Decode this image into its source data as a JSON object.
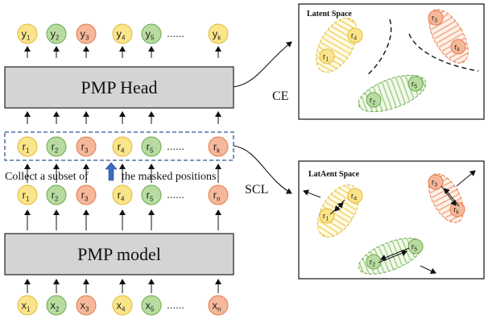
{
  "labels": {
    "pmp_head": "PMP Head",
    "pmp_model": "PMP model",
    "ce": "CE",
    "scl": "SCL",
    "caption_left": "Collect a subset of",
    "caption_right": "the masked positions",
    "panel_top_title": "Latent Space",
    "panel_bottom_title": "LatAent Space",
    "ellipsis": "......"
  },
  "rows": {
    "y": [
      {
        "base": "y",
        "sub": "1",
        "color": "yellow"
      },
      {
        "base": "y",
        "sub": "2",
        "color": "green"
      },
      {
        "base": "y",
        "sub": "3",
        "color": "orange"
      },
      {
        "base": "y",
        "sub": "4",
        "color": "yellow"
      },
      {
        "base": "y",
        "sub": "5",
        "color": "green"
      },
      {
        "base": "y",
        "sub": "k",
        "color": "yellow"
      }
    ],
    "rk": [
      {
        "base": "r",
        "sub": "1",
        "color": "yellow"
      },
      {
        "base": "r",
        "sub": "2",
        "color": "green"
      },
      {
        "base": "r",
        "sub": "3",
        "color": "orange"
      },
      {
        "base": "r",
        "sub": "4",
        "color": "yellow"
      },
      {
        "base": "r",
        "sub": "5",
        "color": "green"
      },
      {
        "base": "r",
        "sub": "k",
        "color": "orange"
      }
    ],
    "rn": [
      {
        "base": "r",
        "sub": "1",
        "color": "yellow"
      },
      {
        "base": "r",
        "sub": "2",
        "color": "green"
      },
      {
        "base": "r",
        "sub": "3",
        "color": "orange"
      },
      {
        "base": "r",
        "sub": "4",
        "color": "yellow"
      },
      {
        "base": "r",
        "sub": "5",
        "color": "green"
      },
      {
        "base": "r",
        "sub": "n",
        "color": "orange"
      }
    ],
    "x": [
      {
        "base": "x",
        "sub": "1",
        "color": "yellow"
      },
      {
        "base": "x",
        "sub": "2",
        "color": "green"
      },
      {
        "base": "x",
        "sub": "3",
        "color": "orange"
      },
      {
        "base": "x",
        "sub": "4",
        "color": "yellow"
      },
      {
        "base": "x",
        "sub": "5",
        "color": "green"
      },
      {
        "base": "x",
        "sub": "n",
        "color": "orange"
      }
    ]
  },
  "panel_tokens": {
    "top": [
      {
        "base": "r",
        "sub": "4",
        "color": "yellow"
      },
      {
        "base": "r",
        "sub": "1",
        "color": "yellow"
      },
      {
        "base": "r",
        "sub": "3",
        "color": "orange"
      },
      {
        "base": "r",
        "sub": "k",
        "color": "orange"
      },
      {
        "base": "r",
        "sub": "5",
        "color": "green"
      },
      {
        "base": "r",
        "sub": "2",
        "color": "green"
      }
    ],
    "bottom": [
      {
        "base": "r",
        "sub": "4",
        "color": "yellow"
      },
      {
        "base": "r",
        "sub": "1",
        "color": "yellow"
      },
      {
        "base": "r",
        "sub": "3",
        "color": "orange"
      },
      {
        "base": "r",
        "sub": "k",
        "color": "orange"
      },
      {
        "base": "r",
        "sub": "5",
        "color": "green"
      },
      {
        "base": "r",
        "sub": "2",
        "color": "green"
      }
    ]
  },
  "colors": {
    "yellow_fill": "#fbe58a",
    "yellow_stroke": "#e0b93a",
    "green_fill": "#b8dca0",
    "green_stroke": "#6aa84f",
    "orange_fill": "#f6b89a",
    "orange_stroke": "#e07b4a",
    "box_fill": "#d4d4d4",
    "dashed_blue": "#2e5597",
    "arrow_blue": "#3a6cc0"
  }
}
